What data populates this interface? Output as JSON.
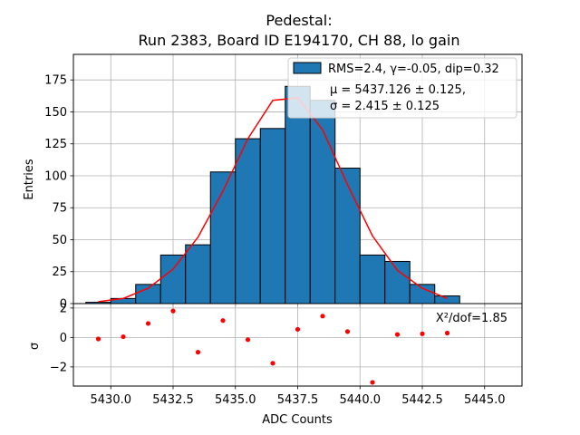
{
  "chart_data": {
    "type": "bar",
    "title_line1": "Pedestal:",
    "title_line2": "Run 2383, Board ID E194170, CH 88, lo gain",
    "xlabel": "ADC Counts",
    "ylabel_top": "Entries",
    "ylabel_bottom": "σ",
    "xlim": [
      5428.5,
      5446.5
    ],
    "ylim_top": [
      0,
      195
    ],
    "ylim_bottom": [
      -3.3,
      2.3
    ],
    "x_ticks": [
      5430.0,
      5432.5,
      5435.0,
      5437.5,
      5440.0,
      5442.5,
      5445.0
    ],
    "x_tick_labels": [
      "5430.0",
      "5432.5",
      "5435.0",
      "5437.5",
      "5440.0",
      "5442.5",
      "5445.0"
    ],
    "y_ticks_top": [
      0,
      25,
      50,
      75,
      100,
      125,
      150,
      175
    ],
    "y_ticks_bottom": [
      -2,
      0,
      2
    ],
    "y_tick_labels_bottom": [
      "−2",
      "0",
      "2"
    ],
    "grid": true,
    "histogram": {
      "name": "RMS=2.4, γ=-0.05, dip=0.32",
      "color": "#1f77b4",
      "bin_width": 1,
      "bin_centers": [
        5429.5,
        5430.5,
        5431.5,
        5432.5,
        5433.5,
        5434.5,
        5435.5,
        5436.5,
        5437.5,
        5438.5,
        5439.5,
        5440.5,
        5441.5,
        5442.5,
        5443.5
      ],
      "values": [
        1,
        4,
        15,
        38,
        46,
        103,
        129,
        137,
        170,
        159,
        106,
        38,
        33,
        15,
        6
      ]
    },
    "fit": {
      "label_mu": "μ = 5437.126 ± 0.125,",
      "label_sigma": "σ = 2.415 ± 0.125",
      "color": "#ff0000",
      "x": [
        5429.5,
        5430.5,
        5431.5,
        5432.5,
        5433.5,
        5434.5,
        5435.5,
        5436.5,
        5437.5,
        5438.5,
        5439.5,
        5440.5,
        5441.5,
        5442.5,
        5443.5
      ],
      "y": [
        1.5,
        4,
        12,
        27,
        52,
        88,
        129,
        159,
        161,
        136,
        93,
        53,
        26,
        12,
        4
      ]
    },
    "residuals": {
      "color": "#ff0000",
      "x": [
        5429.5,
        5430.5,
        5431.5,
        5432.5,
        5433.5,
        5434.5,
        5435.5,
        5436.5,
        5437.5,
        5438.5,
        5439.5,
        5440.5,
        5441.5,
        5442.5,
        5443.5
      ],
      "y": [
        -0.1,
        0.05,
        0.95,
        1.8,
        -1.0,
        1.15,
        -0.15,
        -1.75,
        0.55,
        1.45,
        0.4,
        -3.05,
        0.2,
        0.25,
        0.3
      ]
    },
    "chi2_label": "X²/dof=1.85",
    "legend_location": "top-right"
  }
}
